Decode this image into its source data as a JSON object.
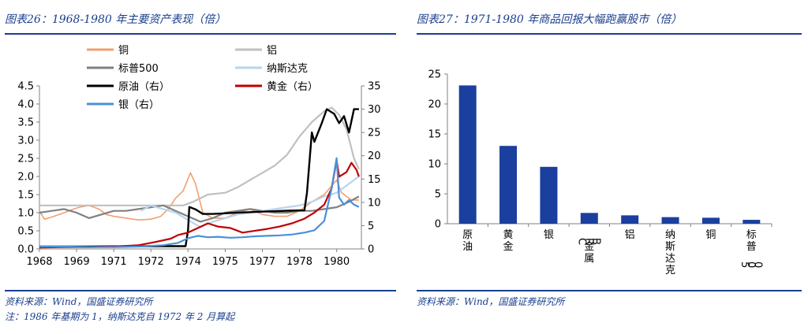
{
  "left": {
    "title": "图表26：1968-1980 年主要资产表现（倍）",
    "source": "资料来源：Wind，国盛证券研究所",
    "footnote": "注：1986 年基期为 1，纳斯达克自 1972 年 2 月算起"
  },
  "right": {
    "title": "图表27：1971-1980 年商品回报大幅跑赢股市（倍）",
    "source": "资料来源：Wind，国盛证券研究所"
  },
  "chart_data": [
    {
      "type": "line",
      "x_tick_labels": [
        "1968",
        "1969",
        "1971",
        "1972",
        "1974",
        "1975",
        "1977",
        "1978",
        "1980"
      ],
      "x_ticks": [
        1968,
        1969.5,
        1971,
        1972.5,
        1974,
        1975.5,
        1977,
        1978.5,
        1980
      ],
      "xlim": [
        1968,
        1981
      ],
      "y_left": {
        "ylim": [
          0,
          4.5
        ],
        "ticks": [
          "0.0",
          "0.5",
          "1.0",
          "1.5",
          "2.0",
          "2.5",
          "3.0",
          "3.5",
          "4.0",
          "4.5"
        ]
      },
      "y_right": {
        "ylim": [
          0,
          35
        ],
        "ticks": [
          "0",
          "5",
          "10",
          "15",
          "20",
          "25",
          "30",
          "35"
        ]
      },
      "series": [
        {
          "name": "铜",
          "axis": "left",
          "color": "#f0a070",
          "width": 1.6,
          "points": [
            [
              1968,
              1.05
            ],
            [
              1968.2,
              0.82
            ],
            [
              1968.5,
              0.88
            ],
            [
              1968.8,
              0.95
            ],
            [
              1969,
              1.0
            ],
            [
              1969.3,
              1.08
            ],
            [
              1969.6,
              1.15
            ],
            [
              1970,
              1.2
            ],
            [
              1970.4,
              1.1
            ],
            [
              1970.7,
              0.95
            ],
            [
              1971,
              0.9
            ],
            [
              1971.5,
              0.85
            ],
            [
              1972,
              0.8
            ],
            [
              1972.5,
              0.82
            ],
            [
              1972.9,
              0.9
            ],
            [
              1973.2,
              1.1
            ],
            [
              1973.5,
              1.4
            ],
            [
              1973.8,
              1.6
            ],
            [
              1974.1,
              2.1
            ],
            [
              1974.3,
              1.8
            ],
            [
              1974.6,
              1.0
            ],
            [
              1975,
              0.85
            ],
            [
              1975.5,
              0.85
            ],
            [
              1976,
              1.0
            ],
            [
              1976.5,
              1.1
            ],
            [
              1977,
              0.95
            ],
            [
              1977.5,
              0.9
            ],
            [
              1978,
              0.9
            ],
            [
              1978.5,
              1.05
            ],
            [
              1979,
              1.3
            ],
            [
              1979.5,
              1.5
            ],
            [
              1980,
              1.9
            ],
            [
              1980.2,
              1.55
            ],
            [
              1980.6,
              1.35
            ],
            [
              1980.9,
              1.35
            ]
          ]
        },
        {
          "name": "铝",
          "axis": "left",
          "color": "#c0c0c0",
          "width": 2.2,
          "points": [
            [
              1968,
              1.2
            ],
            [
              1969,
              1.2
            ],
            [
              1970,
              1.2
            ],
            [
              1971,
              1.2
            ],
            [
              1972,
              1.2
            ],
            [
              1973,
              1.2
            ],
            [
              1973.8,
              1.2
            ],
            [
              1974.2,
              1.3
            ],
            [
              1974.8,
              1.5
            ],
            [
              1975.5,
              1.55
            ],
            [
              1976,
              1.7
            ],
            [
              1976.5,
              1.9
            ],
            [
              1977,
              2.1
            ],
            [
              1977.5,
              2.3
            ],
            [
              1978,
              2.6
            ],
            [
              1978.5,
              3.1
            ],
            [
              1979,
              3.5
            ],
            [
              1979.5,
              3.8
            ],
            [
              1979.8,
              3.9
            ],
            [
              1980.1,
              3.7
            ],
            [
              1980.4,
              3.3
            ],
            [
              1980.7,
              2.5
            ],
            [
              1980.9,
              2.2
            ]
          ]
        },
        {
          "name": "标普500",
          "axis": "left",
          "color": "#808080",
          "width": 2.2,
          "points": [
            [
              1968,
              1.0
            ],
            [
              1968.5,
              1.05
            ],
            [
              1969,
              1.1
            ],
            [
              1969.5,
              1.0
            ],
            [
              1970,
              0.85
            ],
            [
              1970.5,
              0.95
            ],
            [
              1971,
              1.05
            ],
            [
              1971.5,
              1.05
            ],
            [
              1972,
              1.1
            ],
            [
              1972.5,
              1.15
            ],
            [
              1973,
              1.2
            ],
            [
              1973.5,
              1.05
            ],
            [
              1974,
              0.9
            ],
            [
              1974.5,
              0.75
            ],
            [
              1975,
              0.85
            ],
            [
              1975.5,
              1.0
            ],
            [
              1976,
              1.05
            ],
            [
              1976.5,
              1.1
            ],
            [
              1977,
              1.05
            ],
            [
              1977.5,
              1.0
            ],
            [
              1978,
              1.0
            ],
            [
              1978.5,
              1.05
            ],
            [
              1979,
              1.05
            ],
            [
              1979.5,
              1.1
            ],
            [
              1980,
              1.15
            ],
            [
              1980.5,
              1.3
            ],
            [
              1980.9,
              1.45
            ]
          ]
        },
        {
          "name": "纳斯达克",
          "axis": "left",
          "color": "#b8d4ee",
          "width": 2.2,
          "points": [
            [
              1972.1,
              1.05
            ],
            [
              1972.5,
              1.2
            ],
            [
              1973,
              1.1
            ],
            [
              1973.5,
              1.0
            ],
            [
              1974,
              0.8
            ],
            [
              1974.5,
              0.6
            ],
            [
              1975,
              0.75
            ],
            [
              1975.5,
              0.85
            ],
            [
              1976,
              0.95
            ],
            [
              1976.5,
              1.0
            ],
            [
              1977,
              1.05
            ],
            [
              1977.5,
              1.1
            ],
            [
              1978,
              1.15
            ],
            [
              1978.5,
              1.2
            ],
            [
              1979,
              1.3
            ],
            [
              1979.5,
              1.45
            ],
            [
              1980,
              1.55
            ],
            [
              1980.5,
              1.8
            ],
            [
              1980.9,
              2.0
            ]
          ]
        },
        {
          "name": "原油（右）",
          "axis": "right",
          "color": "#000000",
          "width": 2.4,
          "points": [
            [
              1968,
              0.5
            ],
            [
              1970,
              0.5
            ],
            [
              1972,
              0.6
            ],
            [
              1973.9,
              0.6
            ],
            [
              1974,
              4.0
            ],
            [
              1974.05,
              9.0
            ],
            [
              1974.3,
              8.5
            ],
            [
              1974.6,
              7.5
            ],
            [
              1975,
              7.5
            ],
            [
              1976,
              7.8
            ],
            [
              1977,
              8.0
            ],
            [
              1978,
              8.2
            ],
            [
              1978.7,
              8.3
            ],
            [
              1978.8,
              12.0
            ],
            [
              1979,
              25.0
            ],
            [
              1979.1,
              23.0
            ],
            [
              1979.4,
              27.0
            ],
            [
              1979.6,
              30.0
            ],
            [
              1979.9,
              29.0
            ],
            [
              1980.1,
              27.0
            ],
            [
              1980.3,
              28.5
            ],
            [
              1980.5,
              25.0
            ],
            [
              1980.7,
              30.0
            ],
            [
              1980.9,
              30.0
            ]
          ]
        },
        {
          "name": "黄金（右）",
          "axis": "right",
          "color": "#c00000",
          "width": 2.2,
          "points": [
            [
              1968,
              0.3
            ],
            [
              1969,
              0.4
            ],
            [
              1970,
              0.4
            ],
            [
              1971,
              0.5
            ],
            [
              1972,
              0.8
            ],
            [
              1972.7,
              1.5
            ],
            [
              1973.3,
              2.2
            ],
            [
              1973.6,
              3.0
            ],
            [
              1974,
              3.5
            ],
            [
              1974.4,
              4.5
            ],
            [
              1974.8,
              5.5
            ],
            [
              1975.2,
              4.8
            ],
            [
              1975.7,
              4.5
            ],
            [
              1976.2,
              3.5
            ],
            [
              1976.7,
              3.9
            ],
            [
              1977.2,
              4.3
            ],
            [
              1977.7,
              4.8
            ],
            [
              1978.2,
              5.5
            ],
            [
              1978.7,
              6.5
            ],
            [
              1979.1,
              7.8
            ],
            [
              1979.5,
              9.5
            ],
            [
              1979.8,
              13.0
            ],
            [
              1980.0,
              19.0
            ],
            [
              1980.1,
              15.5
            ],
            [
              1980.4,
              16.5
            ],
            [
              1980.6,
              18.5
            ],
            [
              1980.8,
              17.0
            ],
            [
              1980.9,
              15.5
            ]
          ]
        },
        {
          "name": "银（右）",
          "axis": "right",
          "color": "#4a90d9",
          "width": 2.2,
          "points": [
            [
              1968,
              0.5
            ],
            [
              1969,
              0.5
            ],
            [
              1970,
              0.4
            ],
            [
              1971,
              0.4
            ],
            [
              1972,
              0.5
            ],
            [
              1973,
              0.8
            ],
            [
              1973.6,
              1.3
            ],
            [
              1974,
              2.3
            ],
            [
              1974.4,
              2.8
            ],
            [
              1974.8,
              2.5
            ],
            [
              1975.2,
              2.6
            ],
            [
              1975.7,
              2.4
            ],
            [
              1976.2,
              2.5
            ],
            [
              1976.7,
              2.7
            ],
            [
              1977.2,
              2.8
            ],
            [
              1977.7,
              2.9
            ],
            [
              1978.2,
              3.1
            ],
            [
              1978.7,
              3.5
            ],
            [
              1979.1,
              4.0
            ],
            [
              1979.5,
              6.0
            ],
            [
              1979.8,
              13.0
            ],
            [
              1980.0,
              19.5
            ],
            [
              1980.1,
              11.0
            ],
            [
              1980.3,
              9.5
            ],
            [
              1980.5,
              10.5
            ],
            [
              1980.7,
              9.5
            ],
            [
              1980.9,
              9.0
            ]
          ]
        }
      ],
      "legend_placement": "top",
      "grid": false
    },
    {
      "type": "bar",
      "categories": [
        "原油",
        "黄金",
        "银",
        "CRB金属",
        "铝",
        "纳斯达克",
        "铜",
        "标普500"
      ],
      "values": [
        23.1,
        13.0,
        9.5,
        1.8,
        1.4,
        1.1,
        1.0,
        0.65
      ],
      "ylim": [
        0,
        25
      ],
      "y_ticks": [
        "0",
        "5",
        "10",
        "15",
        "20",
        "25"
      ],
      "bar_color": "#1a3f9e",
      "grid": false
    }
  ]
}
